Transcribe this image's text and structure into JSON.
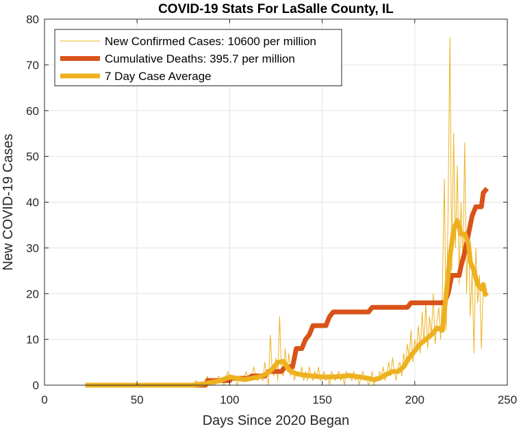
{
  "chart_data": {
    "type": "line",
    "title": "COVID-19 Stats For LaSalle County, IL",
    "xlabel": "Days Since 2020 Began",
    "ylabel": "New COVID-19 Cases",
    "xlim": [
      0,
      250
    ],
    "ylim": [
      0,
      80
    ],
    "xticks": [
      0,
      50,
      100,
      150,
      200,
      250
    ],
    "yticks": [
      0,
      10,
      20,
      30,
      40,
      50,
      60,
      70,
      80
    ],
    "grid": true,
    "legend_position": "top-left",
    "series": [
      {
        "name": "New Confirmed Cases: 10600 per million",
        "style": "thin",
        "color": "#EDB120",
        "points": [
          [
            22,
            0
          ],
          [
            40,
            0
          ],
          [
            60,
            0
          ],
          [
            78,
            0
          ],
          [
            80,
            0
          ],
          [
            82,
            1
          ],
          [
            84,
            0
          ],
          [
            86,
            0
          ],
          [
            88,
            2
          ],
          [
            89,
            0
          ],
          [
            91,
            1
          ],
          [
            92,
            0
          ],
          [
            94,
            2
          ],
          [
            96,
            1
          ],
          [
            97,
            0
          ],
          [
            99,
            3
          ],
          [
            100,
            2
          ],
          [
            101,
            1
          ],
          [
            103,
            2
          ],
          [
            104,
            0
          ],
          [
            106,
            2
          ],
          [
            107,
            1
          ],
          [
            109,
            3
          ],
          [
            110,
            1
          ],
          [
            112,
            2
          ],
          [
            113,
            4
          ],
          [
            115,
            1
          ],
          [
            116,
            2
          ],
          [
            118,
            1
          ],
          [
            119,
            5
          ],
          [
            120,
            2
          ],
          [
            121,
            0
          ],
          [
            122,
            11
          ],
          [
            123,
            3
          ],
          [
            124,
            2
          ],
          [
            125,
            6
          ],
          [
            126,
            1
          ],
          [
            127,
            15
          ],
          [
            128,
            3
          ],
          [
            129,
            2
          ],
          [
            130,
            8
          ],
          [
            131,
            3
          ],
          [
            132,
            7
          ],
          [
            133,
            2
          ],
          [
            134,
            5
          ],
          [
            135,
            1
          ],
          [
            136,
            3
          ],
          [
            137,
            2
          ],
          [
            138,
            2
          ],
          [
            139,
            4
          ],
          [
            140,
            1
          ],
          [
            141,
            3
          ],
          [
            142,
            1
          ],
          [
            143,
            4
          ],
          [
            144,
            2
          ],
          [
            145,
            1
          ],
          [
            146,
            3
          ],
          [
            147,
            2
          ],
          [
            148,
            4
          ],
          [
            149,
            1
          ],
          [
            150,
            2
          ],
          [
            151,
            3
          ],
          [
            152,
            1
          ],
          [
            153,
            2
          ],
          [
            154,
            0
          ],
          [
            155,
            3
          ],
          [
            156,
            2
          ],
          [
            157,
            1
          ],
          [
            158,
            2
          ],
          [
            159,
            3
          ],
          [
            160,
            1
          ],
          [
            161,
            2
          ],
          [
            162,
            0
          ],
          [
            163,
            3
          ],
          [
            164,
            2
          ],
          [
            165,
            2
          ],
          [
            166,
            1
          ],
          [
            167,
            3
          ],
          [
            168,
            1
          ],
          [
            169,
            2
          ],
          [
            170,
            0
          ],
          [
            171,
            2
          ],
          [
            172,
            3
          ],
          [
            173,
            1
          ],
          [
            174,
            2
          ],
          [
            175,
            0
          ],
          [
            176,
            1
          ],
          [
            177,
            3
          ],
          [
            178,
            0
          ],
          [
            179,
            2
          ],
          [
            180,
            1
          ],
          [
            181,
            3
          ],
          [
            182,
            2
          ],
          [
            183,
            4
          ],
          [
            184,
            1
          ],
          [
            185,
            3
          ],
          [
            186,
            5
          ],
          [
            187,
            2
          ],
          [
            188,
            6
          ],
          [
            189,
            3
          ],
          [
            190,
            1
          ],
          [
            191,
            4
          ],
          [
            192,
            5
          ],
          [
            193,
            2
          ],
          [
            194,
            7
          ],
          [
            195,
            4
          ],
          [
            196,
            9
          ],
          [
            197,
            6
          ],
          [
            198,
            12
          ],
          [
            199,
            5
          ],
          [
            200,
            10
          ],
          [
            201,
            8
          ],
          [
            202,
            13
          ],
          [
            203,
            7
          ],
          [
            204,
            16
          ],
          [
            205,
            9
          ],
          [
            206,
            18
          ],
          [
            207,
            8
          ],
          [
            208,
            15
          ],
          [
            209,
            11
          ],
          [
            210,
            20
          ],
          [
            211,
            9
          ],
          [
            212,
            14
          ],
          [
            213,
            17
          ],
          [
            214,
            10
          ],
          [
            215,
            22
          ],
          [
            216,
            45
          ],
          [
            217,
            12
          ],
          [
            218,
            38
          ],
          [
            219,
            76
          ],
          [
            220,
            25
          ],
          [
            221,
            55
          ],
          [
            222,
            30
          ],
          [
            223,
            48
          ],
          [
            224,
            22
          ],
          [
            225,
            40
          ],
          [
            226,
            26
          ],
          [
            227,
            53
          ],
          [
            228,
            20
          ],
          [
            229,
            35
          ],
          [
            230,
            15
          ],
          [
            231,
            25
          ],
          [
            232,
            7
          ],
          [
            233,
            30
          ],
          [
            234,
            18
          ],
          [
            235,
            24
          ],
          [
            236,
            8
          ],
          [
            237,
            22
          ],
          [
            238,
            20
          ]
        ]
      },
      {
        "name": "Cumulative Deaths: 395.7 per million",
        "style": "thick",
        "color": "#D95319",
        "points": [
          [
            22,
            0
          ],
          [
            87,
            0
          ],
          [
            88,
            1
          ],
          [
            100,
            1
          ],
          [
            101,
            1.5
          ],
          [
            110,
            1.5
          ],
          [
            112,
            2
          ],
          [
            119,
            2
          ],
          [
            121,
            3
          ],
          [
            128,
            3
          ],
          [
            130,
            4
          ],
          [
            134,
            4
          ],
          [
            136,
            8
          ],
          [
            139,
            8
          ],
          [
            141,
            10
          ],
          [
            143,
            11
          ],
          [
            145,
            13
          ],
          [
            152,
            13
          ],
          [
            154,
            15
          ],
          [
            156,
            16
          ],
          [
            175,
            16
          ],
          [
            177,
            17
          ],
          [
            196,
            17
          ],
          [
            198,
            18
          ],
          [
            216,
            18
          ],
          [
            218,
            20
          ],
          [
            220,
            24
          ],
          [
            224,
            24
          ],
          [
            225,
            26
          ],
          [
            227,
            29
          ],
          [
            229,
            33
          ],
          [
            231,
            37
          ],
          [
            233,
            39
          ],
          [
            236,
            39
          ],
          [
            237,
            42
          ],
          [
            239,
            43
          ]
        ]
      },
      {
        "name": "7 Day Case Average",
        "style": "thick",
        "color": "#EDB120",
        "points": [
          [
            22,
            0
          ],
          [
            80,
            0
          ],
          [
            86,
            0.3
          ],
          [
            90,
            0.6
          ],
          [
            95,
            1
          ],
          [
            100,
            1.8
          ],
          [
            104,
            1.5
          ],
          [
            108,
            1.2
          ],
          [
            112,
            1.5
          ],
          [
            116,
            1.8
          ],
          [
            120,
            2.5
          ],
          [
            123,
            3.5
          ],
          [
            126,
            5
          ],
          [
            129,
            5.2
          ],
          [
            131,
            4
          ],
          [
            133,
            3
          ],
          [
            136,
            2.5
          ],
          [
            140,
            2.2
          ],
          [
            145,
            2
          ],
          [
            150,
            1.8
          ],
          [
            155,
            1.8
          ],
          [
            160,
            1.9
          ],
          [
            165,
            2.1
          ],
          [
            170,
            1.8
          ],
          [
            175,
            1.5
          ],
          [
            178,
            1.2
          ],
          [
            181,
            1.5
          ],
          [
            184,
            2.2
          ],
          [
            188,
            3
          ],
          [
            191,
            3
          ],
          [
            194,
            4
          ],
          [
            197,
            6
          ],
          [
            200,
            7.5
          ],
          [
            203,
            9
          ],
          [
            206,
            10
          ],
          [
            209,
            11
          ],
          [
            212,
            12.5
          ],
          [
            215,
            12
          ],
          [
            217,
            20
          ],
          [
            219,
            28
          ],
          [
            221,
            34
          ],
          [
            223,
            36
          ],
          [
            225,
            33
          ],
          [
            227,
            33
          ],
          [
            229,
            31
          ],
          [
            230,
            27
          ],
          [
            232,
            25
          ],
          [
            234,
            22
          ],
          [
            236,
            21
          ],
          [
            237,
            22
          ],
          [
            238,
            20
          ],
          [
            239,
            19.5
          ]
        ]
      }
    ]
  }
}
